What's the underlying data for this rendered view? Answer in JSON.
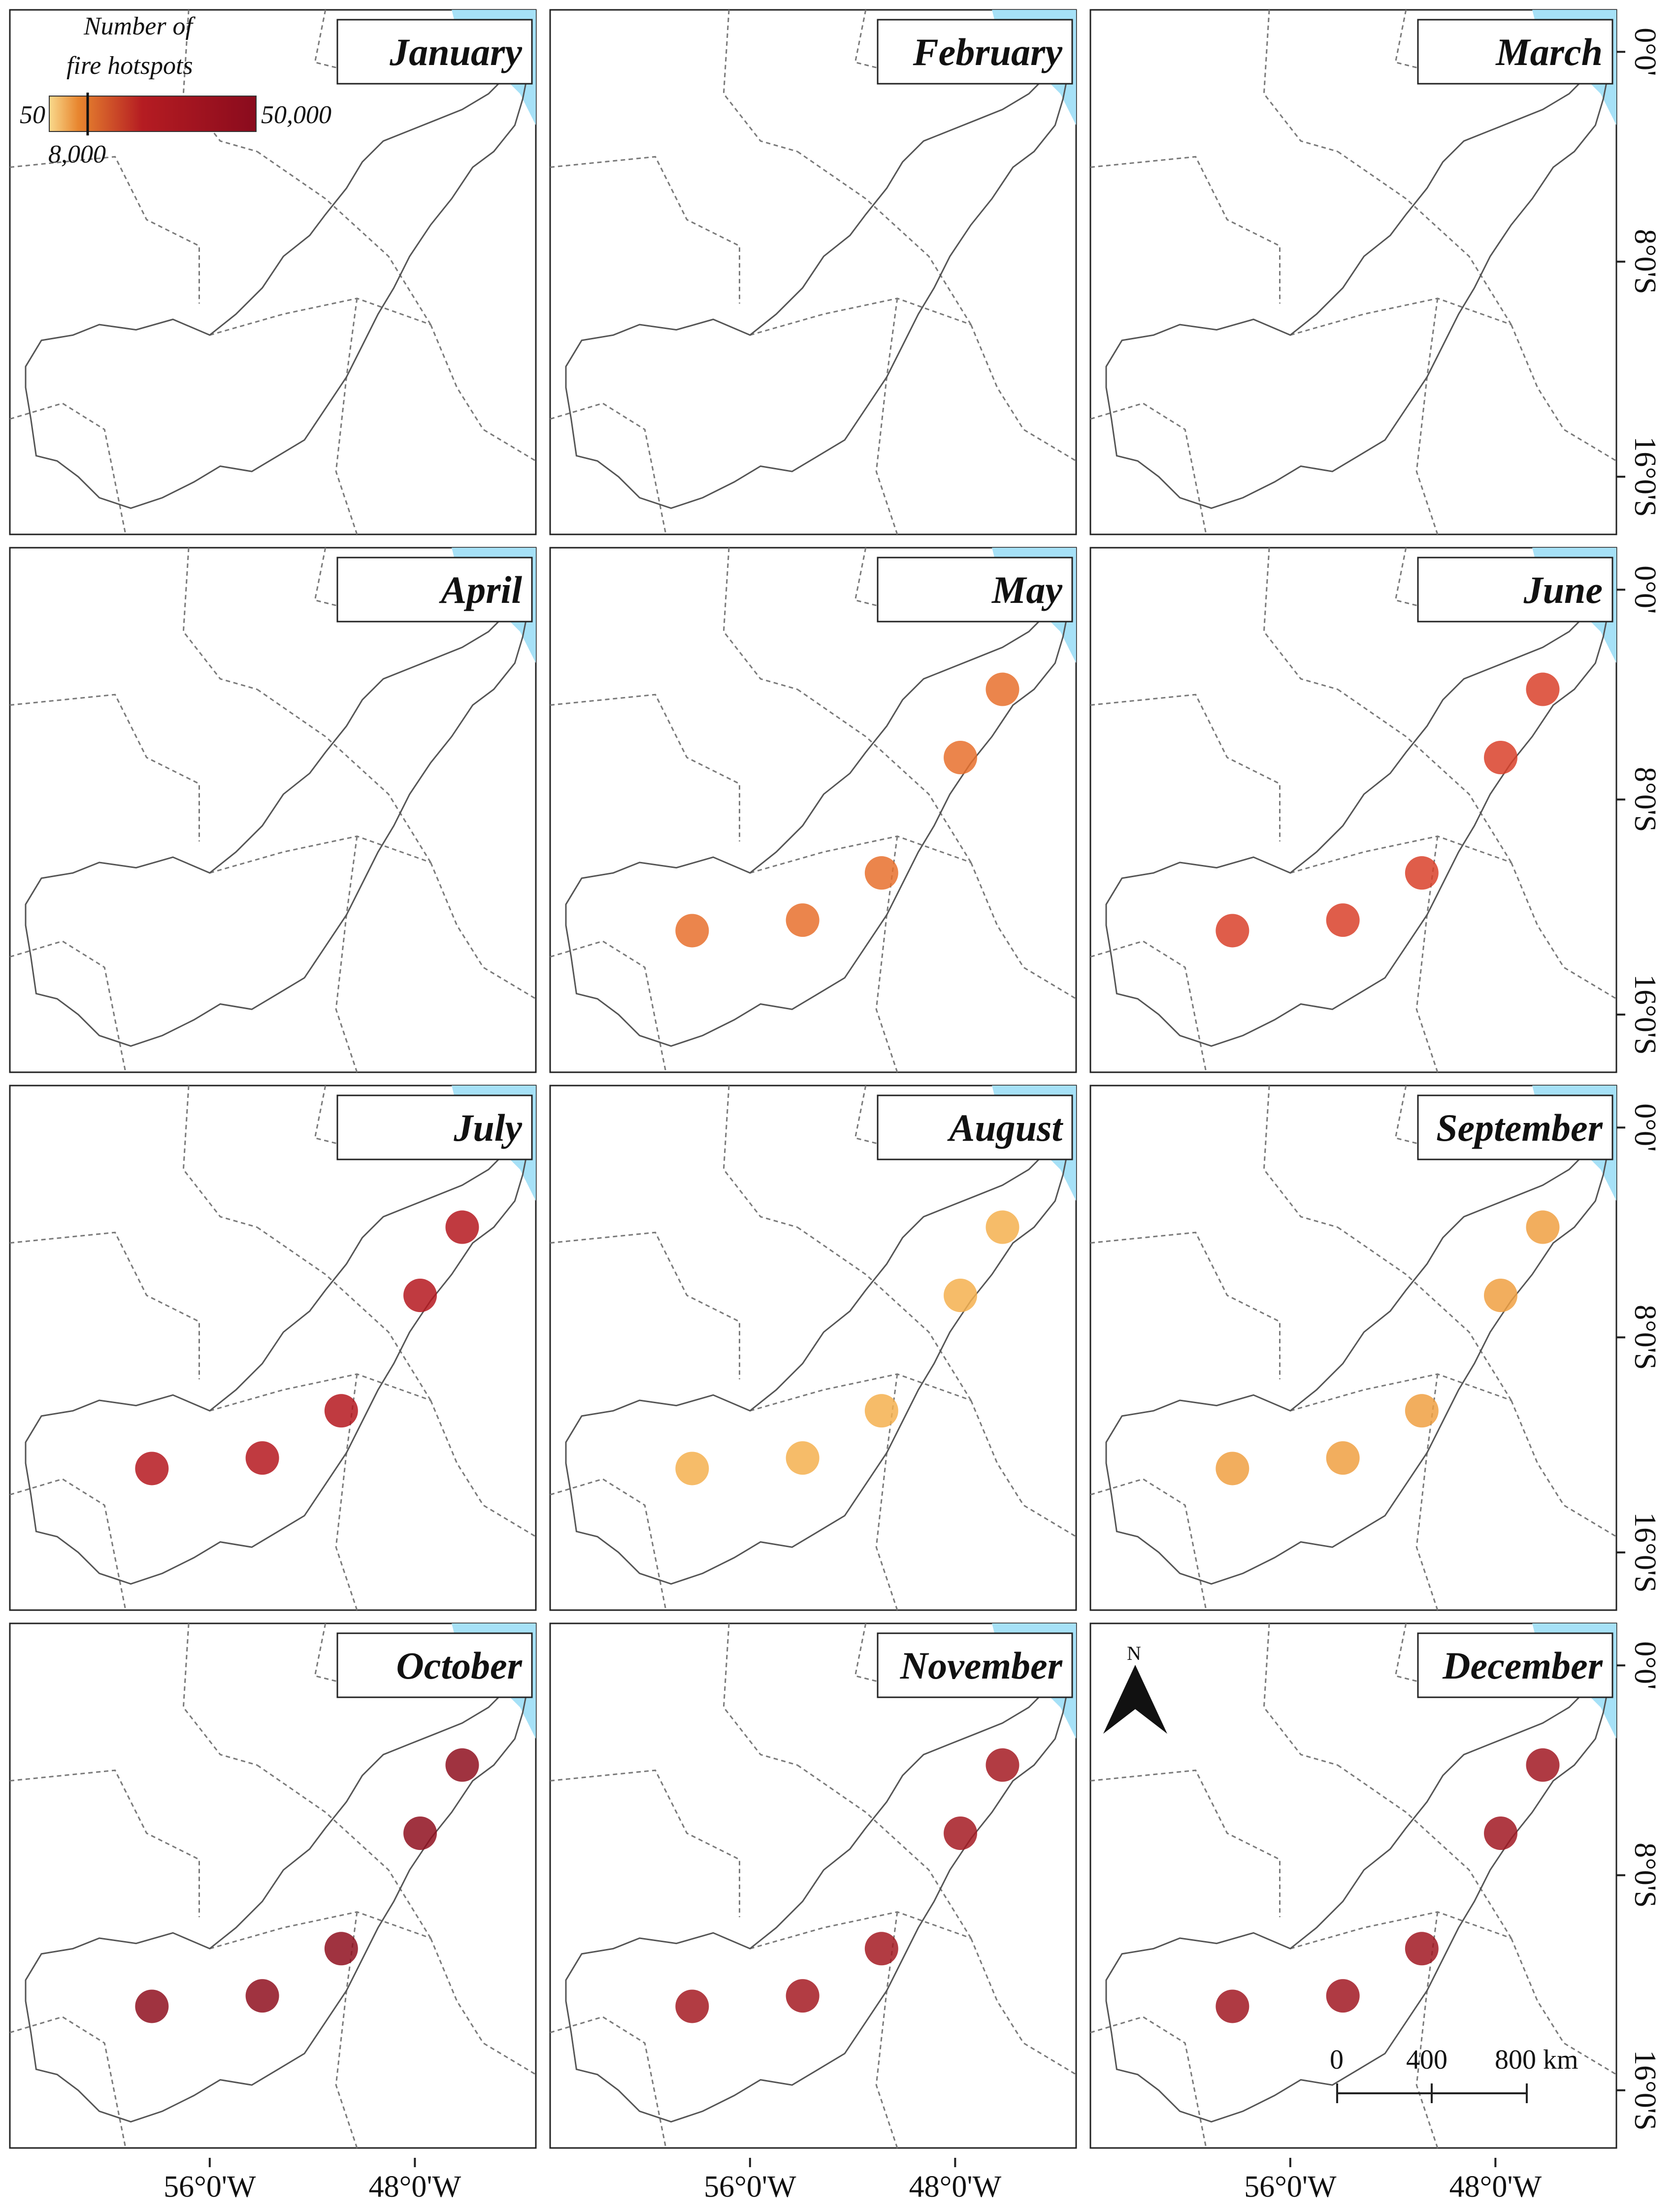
{
  "legend": {
    "title_line1": "Number of",
    "title_line2": "fire hotspots",
    "min_label": "50",
    "mid_label": "8,000",
    "max_label": "50,000",
    "color_low": "#f9d98c",
    "color_mid": "#e8862f",
    "color_high": "#8a0b1d"
  },
  "lat_labels": [
    "0°0'",
    "8°0'S",
    "16°0'S"
  ],
  "lon_labels": [
    "56°0'W",
    "48°0'W"
  ],
  "north_label": "N",
  "scale_bar": {
    "labels": [
      "0",
      "400",
      "800 km"
    ]
  },
  "colors": {
    "ocean": "#a6e1f7",
    "frame": "#222222",
    "border": "#7a7a7a"
  },
  "panels": [
    {
      "month": "January",
      "fill": "#f7c46e",
      "hot": []
    },
    {
      "month": "February",
      "fill": "#fbe7a8",
      "hot": []
    },
    {
      "month": "March",
      "fill": "#f9d890",
      "hot": []
    },
    {
      "month": "April",
      "fill": "#f7cf80",
      "hot": []
    },
    {
      "month": "May",
      "fill": "#f2ac52",
      "hot": [
        "#e8702d"
      ]
    },
    {
      "month": "June",
      "fill": "#ee9644",
      "hot": [
        "#d9412a"
      ]
    },
    {
      "month": "July",
      "fill": "#e98c3c",
      "hot": [
        "#b5171f"
      ]
    },
    {
      "month": "August",
      "fill": "#9a1420",
      "hot": [
        "#f5b04f"
      ]
    },
    {
      "month": "September",
      "fill": "#8e0f1f",
      "hot": [
        "#f0a042"
      ]
    },
    {
      "month": "October",
      "fill": "#e2672e",
      "hot": [
        "#8f0f1f"
      ]
    },
    {
      "month": "November",
      "fill": "#ef9c46",
      "hot": [
        "#a51a22"
      ]
    },
    {
      "month": "December",
      "fill": "#f6bc62",
      "hot": [
        "#a11822"
      ]
    }
  ]
}
